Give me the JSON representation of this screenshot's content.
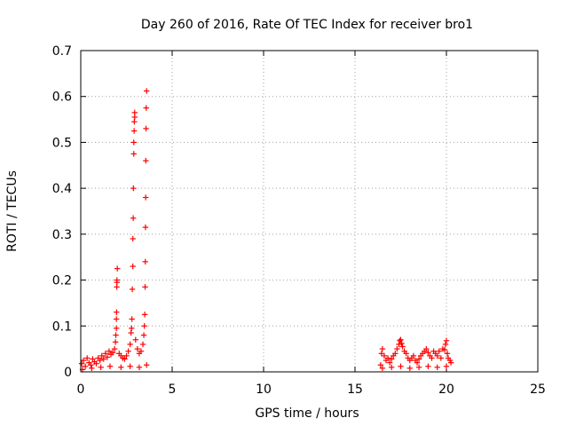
{
  "chart_data": {
    "type": "scatter",
    "title": "Day 260 of 2016, Rate Of TEC Index for receiver bro1",
    "xlabel": "GPS time / hours",
    "ylabel": "ROTI / TECUs",
    "xlim": [
      0,
      25
    ],
    "ylim": [
      0,
      0.7
    ],
    "xticks": [
      "0",
      "5",
      "10",
      "15",
      "20",
      "25"
    ],
    "yticks": [
      "0",
      "0.1",
      "0.2",
      "0.3",
      "0.4",
      "0.5",
      "0.6",
      "0.7"
    ],
    "grid": true,
    "marker": "+",
    "color": "#ff0000",
    "series": [
      {
        "points": [
          [
            0.05,
            0.018
          ],
          [
            0.15,
            0.025
          ],
          [
            0.25,
            0.012
          ],
          [
            0.35,
            0.03
          ],
          [
            0.45,
            0.02
          ],
          [
            0.55,
            0.015
          ],
          [
            0.65,
            0.028
          ],
          [
            0.75,
            0.022
          ],
          [
            0.85,
            0.018
          ],
          [
            0.95,
            0.03
          ],
          [
            1.05,
            0.025
          ],
          [
            1.15,
            0.035
          ],
          [
            1.25,
            0.028
          ],
          [
            1.35,
            0.04
          ],
          [
            1.45,
            0.032
          ],
          [
            1.55,
            0.045
          ],
          [
            1.65,
            0.038
          ],
          [
            1.75,
            0.042
          ],
          [
            1.85,
            0.05
          ],
          [
            1.9,
            0.065
          ],
          [
            1.92,
            0.08
          ],
          [
            1.95,
            0.095
          ],
          [
            1.95,
            0.115
          ],
          [
            1.96,
            0.13
          ],
          [
            1.97,
            0.185
          ],
          [
            1.98,
            0.195
          ],
          [
            1.98,
            0.2
          ],
          [
            2.0,
            0.225
          ],
          [
            2.1,
            0.04
          ],
          [
            2.2,
            0.035
          ],
          [
            2.3,
            0.03
          ],
          [
            2.4,
            0.028
          ],
          [
            2.5,
            0.035
          ],
          [
            2.6,
            0.045
          ],
          [
            2.7,
            0.06
          ],
          [
            2.75,
            0.085
          ],
          [
            2.78,
            0.095
          ],
          [
            2.8,
            0.115
          ],
          [
            2.82,
            0.18
          ],
          [
            2.85,
            0.23
          ],
          [
            2.85,
            0.29
          ],
          [
            2.87,
            0.335
          ],
          [
            2.88,
            0.4
          ],
          [
            2.9,
            0.475
          ],
          [
            2.9,
            0.5
          ],
          [
            2.92,
            0.525
          ],
          [
            2.93,
            0.545
          ],
          [
            2.95,
            0.555
          ],
          [
            2.95,
            0.565
          ],
          [
            3.0,
            0.07
          ],
          [
            3.1,
            0.05
          ],
          [
            3.2,
            0.04
          ],
          [
            3.3,
            0.045
          ],
          [
            3.4,
            0.06
          ],
          [
            3.45,
            0.08
          ],
          [
            3.48,
            0.1
          ],
          [
            3.5,
            0.125
          ],
          [
            3.52,
            0.185
          ],
          [
            3.53,
            0.24
          ],
          [
            3.54,
            0.315
          ],
          [
            3.55,
            0.38
          ],
          [
            3.56,
            0.46
          ],
          [
            3.57,
            0.53
          ],
          [
            3.58,
            0.575
          ],
          [
            3.6,
            0.612
          ],
          [
            0.1,
            0.005
          ],
          [
            0.6,
            0.008
          ],
          [
            1.1,
            0.01
          ],
          [
            1.6,
            0.012
          ],
          [
            2.2,
            0.01
          ],
          [
            2.7,
            0.012
          ],
          [
            3.2,
            0.01
          ],
          [
            3.6,
            0.015
          ],
          [
            16.4,
            0.015
          ],
          [
            16.45,
            0.04
          ],
          [
            16.5,
            0.05
          ],
          [
            16.6,
            0.035
          ],
          [
            16.7,
            0.025
          ],
          [
            16.8,
            0.03
          ],
          [
            16.9,
            0.02
          ],
          [
            17.0,
            0.028
          ],
          [
            17.1,
            0.035
          ],
          [
            17.2,
            0.04
          ],
          [
            17.3,
            0.05
          ],
          [
            17.4,
            0.06
          ],
          [
            17.45,
            0.068
          ],
          [
            17.5,
            0.07
          ],
          [
            17.55,
            0.062
          ],
          [
            17.6,
            0.055
          ],
          [
            17.7,
            0.045
          ],
          [
            17.8,
            0.04
          ],
          [
            17.9,
            0.03
          ],
          [
            18.0,
            0.025
          ],
          [
            18.1,
            0.03
          ],
          [
            18.2,
            0.035
          ],
          [
            18.3,
            0.025
          ],
          [
            18.4,
            0.02
          ],
          [
            18.5,
            0.028
          ],
          [
            18.6,
            0.035
          ],
          [
            18.7,
            0.04
          ],
          [
            18.8,
            0.045
          ],
          [
            18.9,
            0.05
          ],
          [
            19.0,
            0.042
          ],
          [
            19.1,
            0.035
          ],
          [
            19.2,
            0.03
          ],
          [
            19.3,
            0.045
          ],
          [
            19.4,
            0.04
          ],
          [
            19.5,
            0.035
          ],
          [
            19.6,
            0.045
          ],
          [
            19.7,
            0.03
          ],
          [
            19.8,
            0.05
          ],
          [
            19.9,
            0.048
          ],
          [
            19.95,
            0.06
          ],
          [
            20.0,
            0.068
          ],
          [
            20.05,
            0.04
          ],
          [
            20.1,
            0.03
          ],
          [
            20.2,
            0.025
          ],
          [
            20.25,
            0.02
          ],
          [
            16.5,
            0.008
          ],
          [
            17.0,
            0.01
          ],
          [
            17.5,
            0.012
          ],
          [
            18.0,
            0.008
          ],
          [
            18.5,
            0.01
          ],
          [
            19.0,
            0.012
          ],
          [
            19.5,
            0.01
          ],
          [
            20.0,
            0.012
          ]
        ]
      }
    ]
  }
}
